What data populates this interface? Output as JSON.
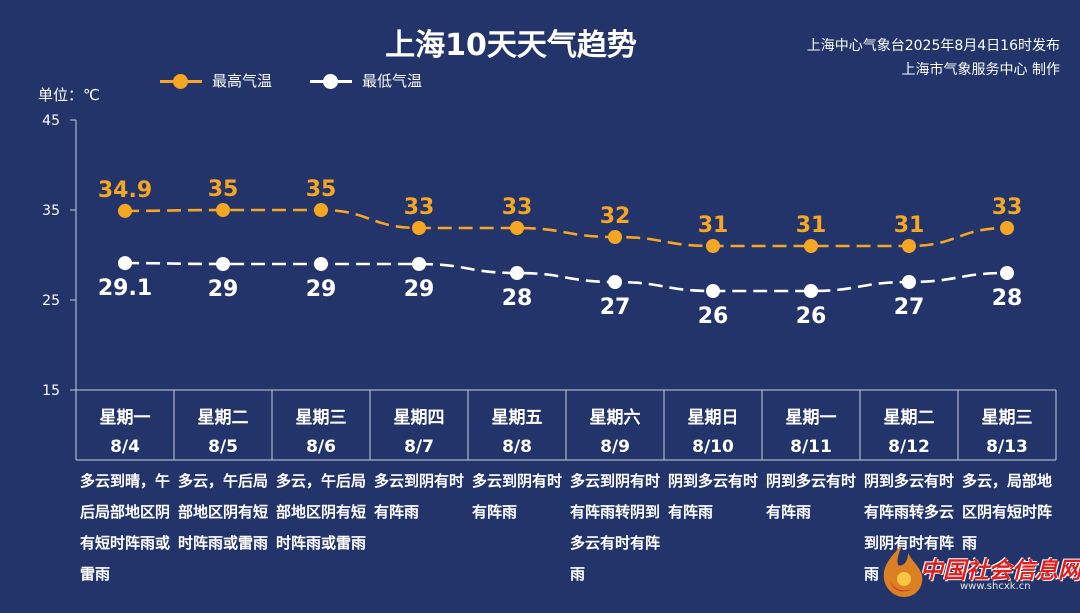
{
  "title": "上海10天天气趋势",
  "source": {
    "line1": "上海中心气象台2025年8月4日16时发布",
    "line2": "上海市气象服务中心 制作"
  },
  "unit_label": "单位：℃",
  "colors": {
    "background": "#23346a",
    "high": "#f5a623",
    "low": "#ffffff",
    "axis": "#c8ccd8"
  },
  "chart_data": {
    "type": "line",
    "title": "上海10天天气趋势",
    "ylabel": "单位：℃",
    "ylim": [
      15,
      45
    ],
    "yticks": [
      15,
      25,
      35,
      45
    ],
    "grid": false,
    "legend_position": "top-left",
    "categories": [
      {
        "weekday": "星期一",
        "date": "8/4"
      },
      {
        "weekday": "星期二",
        "date": "8/5"
      },
      {
        "weekday": "星期三",
        "date": "8/6"
      },
      {
        "weekday": "星期四",
        "date": "8/7"
      },
      {
        "weekday": "星期五",
        "date": "8/8"
      },
      {
        "weekday": "星期六",
        "date": "8/9"
      },
      {
        "weekday": "星期日",
        "date": "8/10"
      },
      {
        "weekday": "星期一",
        "date": "8/11"
      },
      {
        "weekday": "星期二",
        "date": "8/12"
      },
      {
        "weekday": "星期三",
        "date": "8/13"
      }
    ],
    "series": [
      {
        "name": "最高气温",
        "color": "#f5a623",
        "values": [
          34.9,
          35,
          35,
          33,
          33,
          32,
          31,
          31,
          31,
          33
        ],
        "labels": [
          "34.9",
          "35",
          "35",
          "33",
          "33",
          "32",
          "31",
          "31",
          "31",
          "33"
        ]
      },
      {
        "name": "最低气温",
        "color": "#ffffff",
        "values": [
          29.1,
          29,
          29,
          29,
          28,
          27,
          26,
          26,
          27,
          28
        ],
        "labels": [
          "29.1",
          "29",
          "29",
          "29",
          "28",
          "27",
          "26",
          "26",
          "27",
          "28"
        ]
      }
    ]
  },
  "descriptions": [
    "多云到晴，午后局部地区阴有短时阵雨或雷雨",
    "多云，午后局部地区阴有短时阵雨或雷雨",
    "多云，午后局部地区阴有短时阵雨或雷雨",
    "多云到阴有时有阵雨",
    "多云到阴有时有阵雨",
    "多云到阴有时有阵雨转阴到多云有时有阵雨",
    "阴到多云有时有阵雨",
    "阴到多云有时有阵雨",
    "阴到多云有时有阵雨转多云到阴有时有阵雨",
    "多云，局部地区阴有短时阵雨"
  ],
  "watermark": {
    "text": "中国社会信息网",
    "url": "www.shcxk.cn",
    "logo_icon": "flame-logo-icon"
  }
}
